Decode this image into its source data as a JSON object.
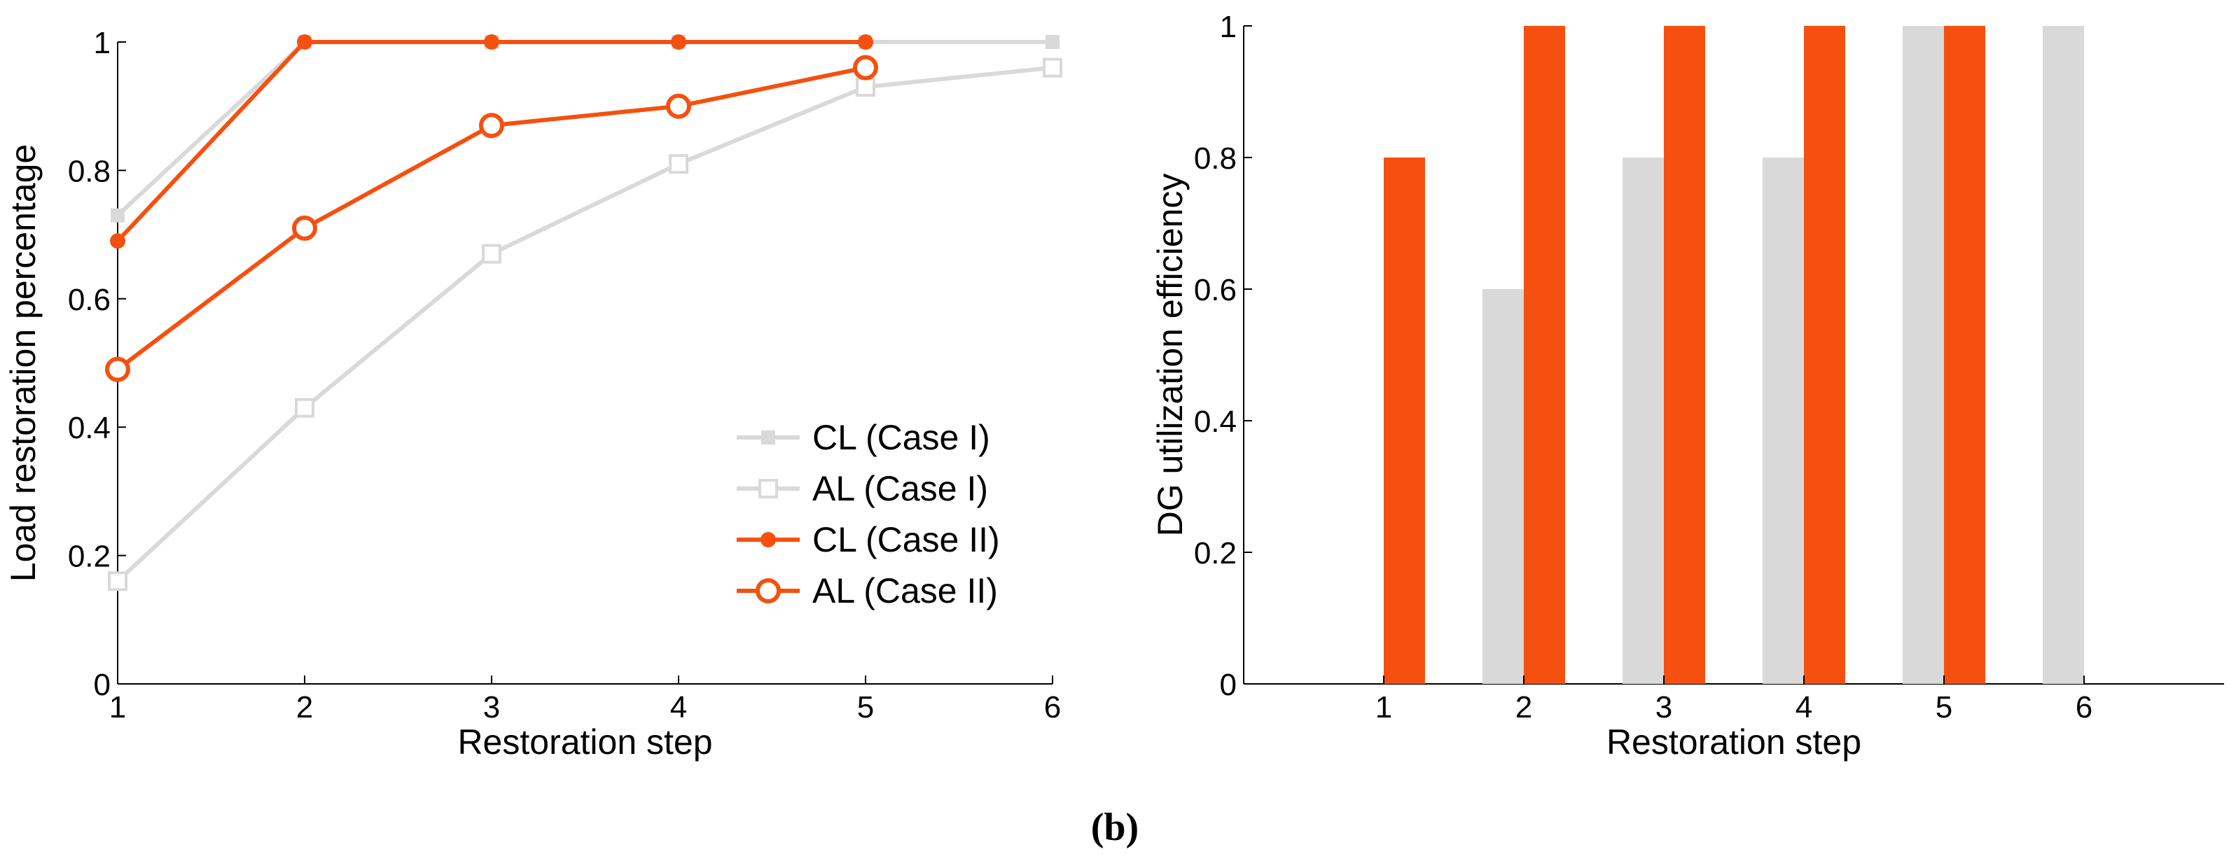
{
  "colors": {
    "case1": "#d9d9d9",
    "case2": "#f5500f",
    "axis": "#000000"
  },
  "chart_data": [
    {
      "type": "line",
      "xlabel": "Restoration step",
      "ylabel": "Load restoration percentage",
      "x": [
        1,
        2,
        3,
        4,
        5,
        6
      ],
      "xlim": [
        1,
        6
      ],
      "ylim": [
        0,
        1
      ],
      "xticks": [
        "1",
        "2",
        "3",
        "4",
        "5",
        "6"
      ],
      "yticks": [
        "0",
        "0.2",
        "0.4",
        "0.6",
        "0.8",
        "1"
      ],
      "legend_position": "bottom-right",
      "series": [
        {
          "name": "CL (Case I)",
          "marker": "square-filled",
          "color_key": "case1",
          "x": [
            1,
            2,
            3,
            4,
            5,
            6
          ],
          "values": [
            0.73,
            1,
            1,
            1,
            1,
            1
          ]
        },
        {
          "name": "AL (Case I)",
          "marker": "square-open",
          "color_key": "case1",
          "x": [
            1,
            2,
            3,
            4,
            5,
            6
          ],
          "values": [
            0.16,
            0.43,
            0.67,
            0.81,
            0.93,
            0.96
          ]
        },
        {
          "name": "CL (Case II)",
          "marker": "circle-filled",
          "color_key": "case2",
          "x": [
            1,
            2,
            3,
            4,
            5
          ],
          "values": [
            0.69,
            1,
            1,
            1,
            1
          ]
        },
        {
          "name": "AL (Case II)",
          "marker": "circle-open",
          "color_key": "case2",
          "x": [
            1,
            2,
            3,
            4,
            5
          ],
          "values": [
            0.49,
            0.71,
            0.87,
            0.9,
            0.96
          ]
        }
      ]
    },
    {
      "type": "bar",
      "xlabel": "Restoration step",
      "ylabel": "DG utilization efficiency",
      "categories": [
        "1",
        "2",
        "3",
        "4",
        "5",
        "6"
      ],
      "ylim": [
        0,
        1
      ],
      "yticks": [
        "0",
        "0.2",
        "0.4",
        "0.6",
        "0.8",
        "1"
      ],
      "series": [
        {
          "name": "Case I",
          "color_key": "case1",
          "values": [
            0,
            0.6,
            0.8,
            0.8,
            1,
            1
          ]
        },
        {
          "name": "Case II",
          "color_key": "case2",
          "values": [
            0.8,
            1,
            1,
            1,
            1,
            0
          ]
        }
      ]
    }
  ],
  "caption": "(b)"
}
